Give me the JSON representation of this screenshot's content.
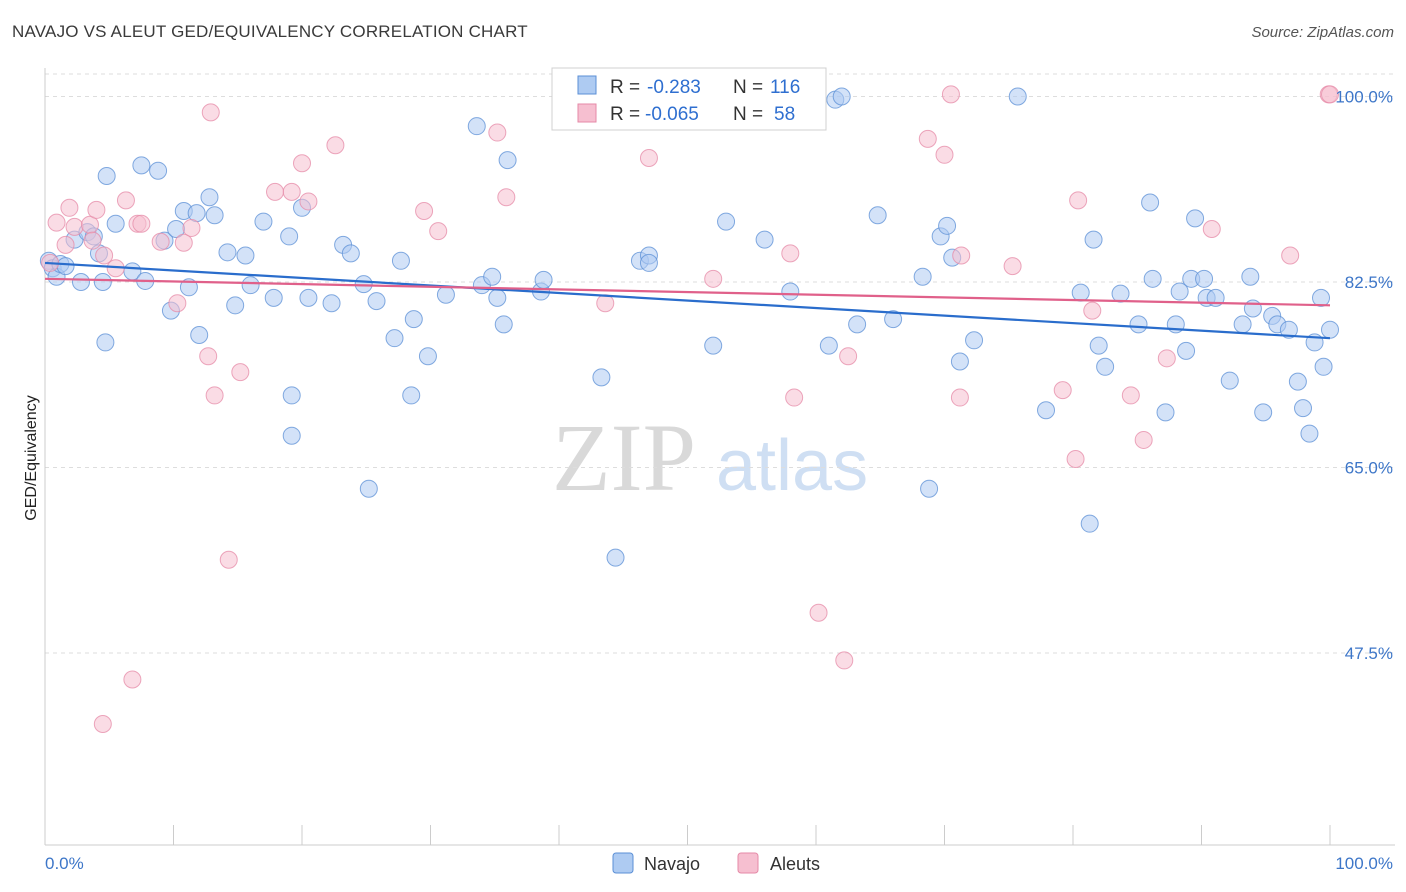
{
  "title": "NAVAJO VS ALEUT GED/EQUIVALENCY CORRELATION CHART",
  "source": "Source: ZipAtlas.com",
  "watermark": {
    "zip": "ZIP",
    "atlas": "atlas"
  },
  "colors": {
    "navajo_fill": "#aecbf2",
    "navajo_stroke": "#5b8fd6",
    "navajo_line": "#2a6dcc",
    "aleut_fill": "#f6bfd0",
    "aleut_stroke": "#e58aa7",
    "aleut_line": "#e0608a",
    "tick_text": "#3d76c8",
    "grid": "#dddddd"
  },
  "legend": {
    "rows": [
      {
        "r_label": "R =",
        "r_value": "-0.283",
        "n_label": "N =",
        "n_value": "116"
      },
      {
        "r_label": "R =",
        "r_value": "-0.065",
        "n_label": "N =",
        "n_value": "58"
      }
    ]
  },
  "bottom_legend": [
    "Navajo",
    "Aleuts"
  ],
  "chart_data": {
    "type": "scatter",
    "title": "NAVAJO VS ALEUT GED/EQUIVALENCY CORRELATION CHART",
    "xlabel": "",
    "ylabel": "GED/Equivalency",
    "xlim": [
      0,
      100
    ],
    "ylim": [
      30,
      102.5
    ],
    "x_tick_labels": [
      "0.0%",
      "100.0%"
    ],
    "y_ticks": [
      47.5,
      65.0,
      82.5,
      100.0
    ],
    "y_tick_labels": [
      "47.5%",
      "65.0%",
      "82.5%",
      "100.0%"
    ],
    "grid": true,
    "legend_position": "top-center",
    "series": [
      {
        "name": "Navajo",
        "trend": {
          "x": [
            0,
            100
          ],
          "y": [
            84.3,
            77.2
          ]
        },
        "points": [
          [
            0.3,
            84.5
          ],
          [
            0.6,
            83.8
          ],
          [
            0.9,
            83.0
          ],
          [
            1.2,
            84.2
          ],
          [
            1.6,
            84.0
          ],
          [
            2.3,
            86.5
          ],
          [
            2.8,
            82.5
          ],
          [
            3.3,
            87.2
          ],
          [
            3.8,
            86.8
          ],
          [
            4.2,
            85.2
          ],
          [
            4.5,
            82.5
          ],
          [
            4.7,
            76.8
          ],
          [
            4.8,
            92.5
          ],
          [
            5.5,
            88.0
          ],
          [
            6.8,
            83.5
          ],
          [
            7.5,
            93.5
          ],
          [
            7.8,
            82.6
          ],
          [
            8.8,
            93.0
          ],
          [
            9.3,
            86.4
          ],
          [
            9.8,
            79.8
          ],
          [
            10.2,
            87.5
          ],
          [
            10.8,
            89.2
          ],
          [
            11.2,
            82.0
          ],
          [
            11.8,
            89.0
          ],
          [
            12.0,
            77.5
          ],
          [
            12.8,
            90.5
          ],
          [
            13.2,
            88.8
          ],
          [
            14.2,
            85.3
          ],
          [
            14.8,
            80.3
          ],
          [
            15.6,
            85.0
          ],
          [
            16.0,
            82.2
          ],
          [
            17.0,
            88.2
          ],
          [
            17.8,
            81.0
          ],
          [
            19.0,
            86.8
          ],
          [
            19.2,
            71.8
          ],
          [
            19.2,
            68.0
          ],
          [
            20.0,
            89.5
          ],
          [
            20.5,
            81.0
          ],
          [
            22.3,
            80.5
          ],
          [
            23.2,
            86.0
          ],
          [
            23.8,
            85.2
          ],
          [
            24.8,
            82.3
          ],
          [
            25.2,
            63.0
          ],
          [
            25.8,
            80.7
          ],
          [
            27.2,
            77.2
          ],
          [
            27.7,
            84.5
          ],
          [
            28.5,
            71.8
          ],
          [
            28.7,
            79.0
          ],
          [
            29.8,
            75.5
          ],
          [
            31.2,
            81.3
          ],
          [
            33.6,
            97.2
          ],
          [
            34.0,
            82.2
          ],
          [
            34.8,
            83.0
          ],
          [
            35.2,
            81.0
          ],
          [
            35.7,
            78.5
          ],
          [
            36.0,
            94.0
          ],
          [
            38.6,
            81.6
          ],
          [
            38.8,
            82.7
          ],
          [
            43.3,
            73.5
          ],
          [
            44.4,
            56.5
          ],
          [
            46.3,
            84.5
          ],
          [
            47.0,
            85.0
          ],
          [
            47.0,
            84.3
          ],
          [
            52.0,
            100.0
          ],
          [
            52.0,
            76.5
          ],
          [
            53.0,
            88.2
          ],
          [
            56.0,
            86.5
          ],
          [
            58.0,
            81.6
          ],
          [
            61.0,
            76.5
          ],
          [
            61.5,
            99.7
          ],
          [
            62.0,
            100.0
          ],
          [
            63.2,
            78.5
          ],
          [
            64.8,
            88.8
          ],
          [
            66.0,
            79.0
          ],
          [
            68.3,
            83.0
          ],
          [
            68.8,
            63.0
          ],
          [
            69.7,
            86.8
          ],
          [
            70.2,
            87.8
          ],
          [
            70.6,
            84.8
          ],
          [
            71.2,
            75.0
          ],
          [
            72.3,
            77.0
          ],
          [
            75.7,
            100.0
          ],
          [
            77.9,
            70.4
          ],
          [
            80.6,
            81.5
          ],
          [
            81.3,
            59.7
          ],
          [
            81.6,
            86.5
          ],
          [
            82.0,
            76.5
          ],
          [
            82.5,
            74.5
          ],
          [
            83.7,
            81.4
          ],
          [
            85.1,
            78.5
          ],
          [
            86.0,
            90.0
          ],
          [
            86.2,
            82.8
          ],
          [
            87.2,
            70.2
          ],
          [
            88.0,
            78.5
          ],
          [
            88.3,
            81.6
          ],
          [
            88.8,
            76.0
          ],
          [
            89.2,
            82.8
          ],
          [
            89.5,
            88.5
          ],
          [
            90.2,
            82.8
          ],
          [
            90.4,
            81.0
          ],
          [
            91.1,
            81.0
          ],
          [
            92.2,
            73.2
          ],
          [
            93.2,
            78.5
          ],
          [
            93.8,
            83.0
          ],
          [
            94.0,
            80.0
          ],
          [
            94.8,
            70.2
          ],
          [
            95.5,
            79.3
          ],
          [
            95.9,
            78.5
          ],
          [
            96.8,
            78.0
          ],
          [
            97.5,
            73.1
          ],
          [
            97.9,
            70.6
          ],
          [
            98.4,
            68.2
          ],
          [
            98.8,
            76.8
          ],
          [
            99.3,
            81.0
          ],
          [
            99.5,
            74.5
          ],
          [
            100.0,
            78.0
          ]
        ]
      },
      {
        "name": "Aleuts",
        "trend": {
          "x": [
            0,
            100
          ],
          "y": [
            82.8,
            80.3
          ]
        },
        "points": [
          [
            0.4,
            84.3
          ],
          [
            0.9,
            88.1
          ],
          [
            1.6,
            86.0
          ],
          [
            1.9,
            89.5
          ],
          [
            2.3,
            87.7
          ],
          [
            3.5,
            87.9
          ],
          [
            3.7,
            86.4
          ],
          [
            4.0,
            89.3
          ],
          [
            4.5,
            40.8
          ],
          [
            4.6,
            85.0
          ],
          [
            5.5,
            83.8
          ],
          [
            6.3,
            90.2
          ],
          [
            6.8,
            45.0
          ],
          [
            7.2,
            88.0
          ],
          [
            7.5,
            88.0
          ],
          [
            9.0,
            86.3
          ],
          [
            10.3,
            80.5
          ],
          [
            10.8,
            86.2
          ],
          [
            11.4,
            87.6
          ],
          [
            12.7,
            75.5
          ],
          [
            12.9,
            98.5
          ],
          [
            13.2,
            71.8
          ],
          [
            14.3,
            56.3
          ],
          [
            15.2,
            74.0
          ],
          [
            17.9,
            91.0
          ],
          [
            19.2,
            91.0
          ],
          [
            20.0,
            93.7
          ],
          [
            20.5,
            90.1
          ],
          [
            22.6,
            95.4
          ],
          [
            29.5,
            89.2
          ],
          [
            30.6,
            87.3
          ],
          [
            35.2,
            96.6
          ],
          [
            35.9,
            90.5
          ],
          [
            43.6,
            80.5
          ],
          [
            47.0,
            94.2
          ],
          [
            52.0,
            82.8
          ],
          [
            58.0,
            85.2
          ],
          [
            58.3,
            71.6
          ],
          [
            60.2,
            51.3
          ],
          [
            62.2,
            46.8
          ],
          [
            62.5,
            75.5
          ],
          [
            68.7,
            96.0
          ],
          [
            70.0,
            94.5
          ],
          [
            70.5,
            100.2
          ],
          [
            71.2,
            71.6
          ],
          [
            71.3,
            85.0
          ],
          [
            75.3,
            84.0
          ],
          [
            79.2,
            72.3
          ],
          [
            80.2,
            65.8
          ],
          [
            80.4,
            90.2
          ],
          [
            81.5,
            79.8
          ],
          [
            84.5,
            71.8
          ],
          [
            85.5,
            67.6
          ],
          [
            87.3,
            75.3
          ],
          [
            90.8,
            87.5
          ],
          [
            96.9,
            85.0
          ],
          [
            99.9,
            100.2
          ],
          [
            100.0,
            100.2
          ]
        ]
      }
    ]
  }
}
